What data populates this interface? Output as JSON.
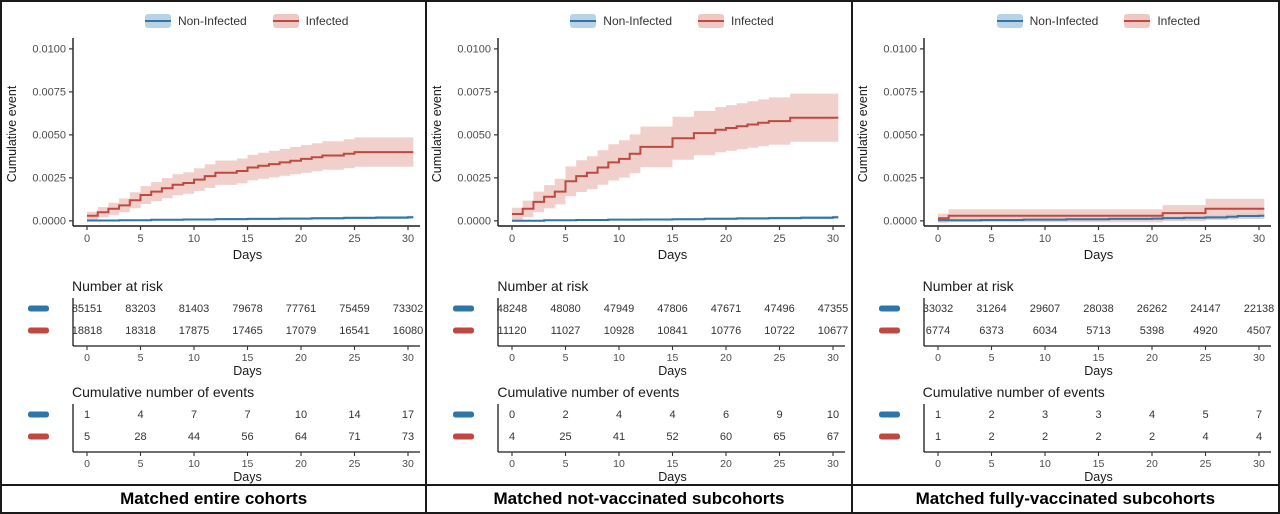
{
  "figure": {
    "type": "kaplan-meier-cumulative-incidence-figure",
    "panels_count": 3,
    "colors": {
      "non_infected_line": "#2e75a8",
      "non_infected_band": "#b9d3e6",
      "infected_line": "#bf4940",
      "infected_band": "#efc8c3",
      "axis_text": "#4d4d4d",
      "table_text": "#333333",
      "border": "#1a1a1a"
    }
  },
  "chart_data": [
    {
      "type": "line",
      "subtype": "km-step-with-ci-band",
      "title": "Matched entire cohorts",
      "xlabel": "Days",
      "ylabel": "Cumulative event",
      "xticks": [
        0,
        5,
        10,
        15,
        20,
        25,
        30
      ],
      "yticks": [
        0.0,
        0.0025,
        0.005,
        0.0075,
        0.01
      ],
      "xlim": [
        -1.3,
        31.2
      ],
      "ylim": [
        -0.0003,
        0.0104
      ],
      "grid": false,
      "legend_position": "top",
      "legend": [
        "Non-Infected",
        "Infected"
      ],
      "series": [
        {
          "name": "Non-Infected",
          "color": "#2e75a8",
          "band_color": "#b9d3e6",
          "ci_halfwidth_end": 9e-05,
          "x": [
            0,
            3,
            6,
            9,
            12,
            15,
            18,
            21,
            24,
            27,
            30
          ],
          "y": [
            2e-05,
            4e-05,
            6e-05,
            8e-05,
            0.0001,
            0.00011,
            0.00013,
            0.00015,
            0.00017,
            0.00019,
            0.00021
          ]
        },
        {
          "name": "Infected",
          "color": "#bf4940",
          "band_color": "#efc8c3",
          "ci_halfwidth_end": 0.00085,
          "x": [
            0,
            1,
            2,
            3,
            4,
            5,
            6,
            7,
            8,
            9,
            10,
            11,
            12,
            13,
            14,
            15,
            16,
            17,
            18,
            19,
            20,
            21,
            22,
            23,
            24,
            25,
            26,
            27,
            28,
            29,
            30
          ],
          "y": [
            0.0003,
            0.0005,
            0.0007,
            0.0009,
            0.0012,
            0.0015,
            0.0017,
            0.0019,
            0.0021,
            0.0022,
            0.0024,
            0.0026,
            0.0028,
            0.0028,
            0.0029,
            0.0031,
            0.0032,
            0.0033,
            0.0034,
            0.0035,
            0.0036,
            0.0037,
            0.0038,
            0.0038,
            0.0039,
            0.004,
            0.004,
            0.004,
            0.004,
            0.004,
            0.004
          ]
        }
      ],
      "risk_table": {
        "title": "Number at risk",
        "xlabel": "Days",
        "xticks": [
          0,
          5,
          10,
          15,
          20,
          25,
          30
        ],
        "rows": [
          {
            "name": "Non-Infected",
            "color": "#2e75a8",
            "values": [
              "85151",
              "83203",
              "81403",
              "79678",
              "77761",
              "75459",
              "73302"
            ]
          },
          {
            "name": "Infected",
            "color": "#bf4940",
            "values": [
              "18818",
              "18318",
              "17875",
              "17465",
              "17079",
              "16541",
              "16080"
            ]
          }
        ]
      },
      "events_table": {
        "title": "Cumulative number of events",
        "xlabel": "Days",
        "xticks": [
          0,
          5,
          10,
          15,
          20,
          25,
          30
        ],
        "rows": [
          {
            "name": "Non-Infected",
            "color": "#2e75a8",
            "values": [
              "1",
              "4",
              "7",
              "7",
              "10",
              "14",
              "17"
            ]
          },
          {
            "name": "Infected",
            "color": "#bf4940",
            "values": [
              "5",
              "28",
              "44",
              "56",
              "64",
              "71",
              "73"
            ]
          }
        ]
      }
    },
    {
      "type": "line",
      "subtype": "km-step-with-ci-band",
      "title": "Matched not-vaccinated subcohorts",
      "xlabel": "Days",
      "ylabel": "Cumulative event",
      "xticks": [
        0,
        5,
        10,
        15,
        20,
        25,
        30
      ],
      "yticks": [
        0.0,
        0.0025,
        0.005,
        0.0075,
        0.01
      ],
      "xlim": [
        -1.3,
        31.2
      ],
      "ylim": [
        -0.0003,
        0.0104
      ],
      "grid": false,
      "legend_position": "top",
      "legend": [
        "Non-Infected",
        "Infected"
      ],
      "series": [
        {
          "name": "Non-Infected",
          "color": "#2e75a8",
          "band_color": "#b9d3e6",
          "ci_halfwidth_end": 9e-05,
          "x": [
            0,
            3,
            6,
            9,
            12,
            15,
            18,
            21,
            24,
            27,
            30
          ],
          "y": [
            1e-05,
            3e-05,
            5e-05,
            7e-05,
            8e-05,
            9e-05,
            0.00012,
            0.00014,
            0.00016,
            0.00018,
            0.00021
          ]
        },
        {
          "name": "Infected",
          "color": "#bf4940",
          "band_color": "#efc8c3",
          "ci_halfwidth_end": 0.0014,
          "x": [
            0,
            1,
            2,
            3,
            4,
            5,
            6,
            7,
            8,
            9,
            10,
            11,
            12,
            13,
            14,
            15,
            16,
            17,
            18,
            19,
            20,
            21,
            22,
            23,
            24,
            25,
            26,
            27,
            28,
            29,
            30
          ],
          "y": [
            0.0004,
            0.0007,
            0.0011,
            0.0014,
            0.0017,
            0.0023,
            0.0026,
            0.0028,
            0.0031,
            0.0034,
            0.0036,
            0.0039,
            0.0043,
            0.0043,
            0.0043,
            0.0048,
            0.0048,
            0.0051,
            0.0051,
            0.0053,
            0.0054,
            0.0055,
            0.0056,
            0.0057,
            0.0058,
            0.0058,
            0.006,
            0.006,
            0.006,
            0.006,
            0.006
          ]
        }
      ],
      "risk_table": {
        "title": "Number at risk",
        "xlabel": "Days",
        "xticks": [
          0,
          5,
          10,
          15,
          20,
          25,
          30
        ],
        "rows": [
          {
            "name": "Non-Infected",
            "color": "#2e75a8",
            "values": [
              "48248",
              "48080",
              "47949",
              "47806",
              "47671",
              "47496",
              "47355"
            ]
          },
          {
            "name": "Infected",
            "color": "#bf4940",
            "values": [
              "11120",
              "11027",
              "10928",
              "10841",
              "10776",
              "10722",
              "10677"
            ]
          }
        ]
      },
      "events_table": {
        "title": "Cumulative number of events",
        "xlabel": "Days",
        "xticks": [
          0,
          5,
          10,
          15,
          20,
          25,
          30
        ],
        "rows": [
          {
            "name": "Non-Infected",
            "color": "#2e75a8",
            "values": [
              "0",
              "2",
              "4",
              "4",
              "6",
              "9",
              "10"
            ]
          },
          {
            "name": "Infected",
            "color": "#bf4940",
            "values": [
              "4",
              "25",
              "41",
              "52",
              "60",
              "65",
              "67"
            ]
          }
        ]
      }
    },
    {
      "type": "line",
      "subtype": "km-step-with-ci-band",
      "title": "Matched fully-vaccinated subcohorts",
      "xlabel": "Days",
      "ylabel": "Cumulative event",
      "xticks": [
        0,
        5,
        10,
        15,
        20,
        25,
        30
      ],
      "yticks": [
        0.0,
        0.0025,
        0.005,
        0.0075,
        0.01
      ],
      "xlim": [
        -1.3,
        31.2
      ],
      "ylim": [
        -0.0003,
        0.0104
      ],
      "grid": false,
      "legend_position": "top",
      "legend": [
        "Non-Infected",
        "Infected"
      ],
      "series": [
        {
          "name": "Non-Infected",
          "color": "#2e75a8",
          "band_color": "#b9d3e6",
          "ci_halfwidth_end": 0.00018,
          "x": [
            0,
            4,
            8,
            12,
            16,
            20,
            21,
            23,
            25,
            27,
            28,
            30
          ],
          "y": [
            3e-05,
            5e-05,
            7e-05,
            9e-05,
            0.00011,
            0.00013,
            0.00016,
            0.00018,
            0.0002,
            0.00024,
            0.00028,
            0.0003
          ]
        },
        {
          "name": "Infected",
          "color": "#bf4940",
          "band_color": "#efc8c3",
          "ci_halfwidth_end": 0.00058,
          "x": [
            0,
            1,
            21,
            25,
            30
          ],
          "y": [
            0.00015,
            0.0003,
            0.00045,
            0.0007,
            0.0007
          ]
        }
      ],
      "risk_table": {
        "title": "Number at risk",
        "xlabel": "Days",
        "xticks": [
          0,
          5,
          10,
          15,
          20,
          25,
          30
        ],
        "rows": [
          {
            "name": "Non-Infected",
            "color": "#2e75a8",
            "values": [
              "33032",
              "31264",
              "29607",
              "28038",
              "26262",
              "24147",
              "22138"
            ]
          },
          {
            "name": "Infected",
            "color": "#bf4940",
            "values": [
              "6774",
              "6373",
              "6034",
              "5713",
              "5398",
              "4920",
              "4507"
            ]
          }
        ]
      },
      "events_table": {
        "title": "Cumulative number of events",
        "xlabel": "Days",
        "xticks": [
          0,
          5,
          10,
          15,
          20,
          25,
          30
        ],
        "rows": [
          {
            "name": "Non-Infected",
            "color": "#2e75a8",
            "values": [
              "1",
              "2",
              "3",
              "3",
              "4",
              "5",
              "7"
            ]
          },
          {
            "name": "Infected",
            "color": "#bf4940",
            "values": [
              "1",
              "2",
              "2",
              "2",
              "2",
              "4",
              "4"
            ]
          }
        ]
      }
    }
  ]
}
